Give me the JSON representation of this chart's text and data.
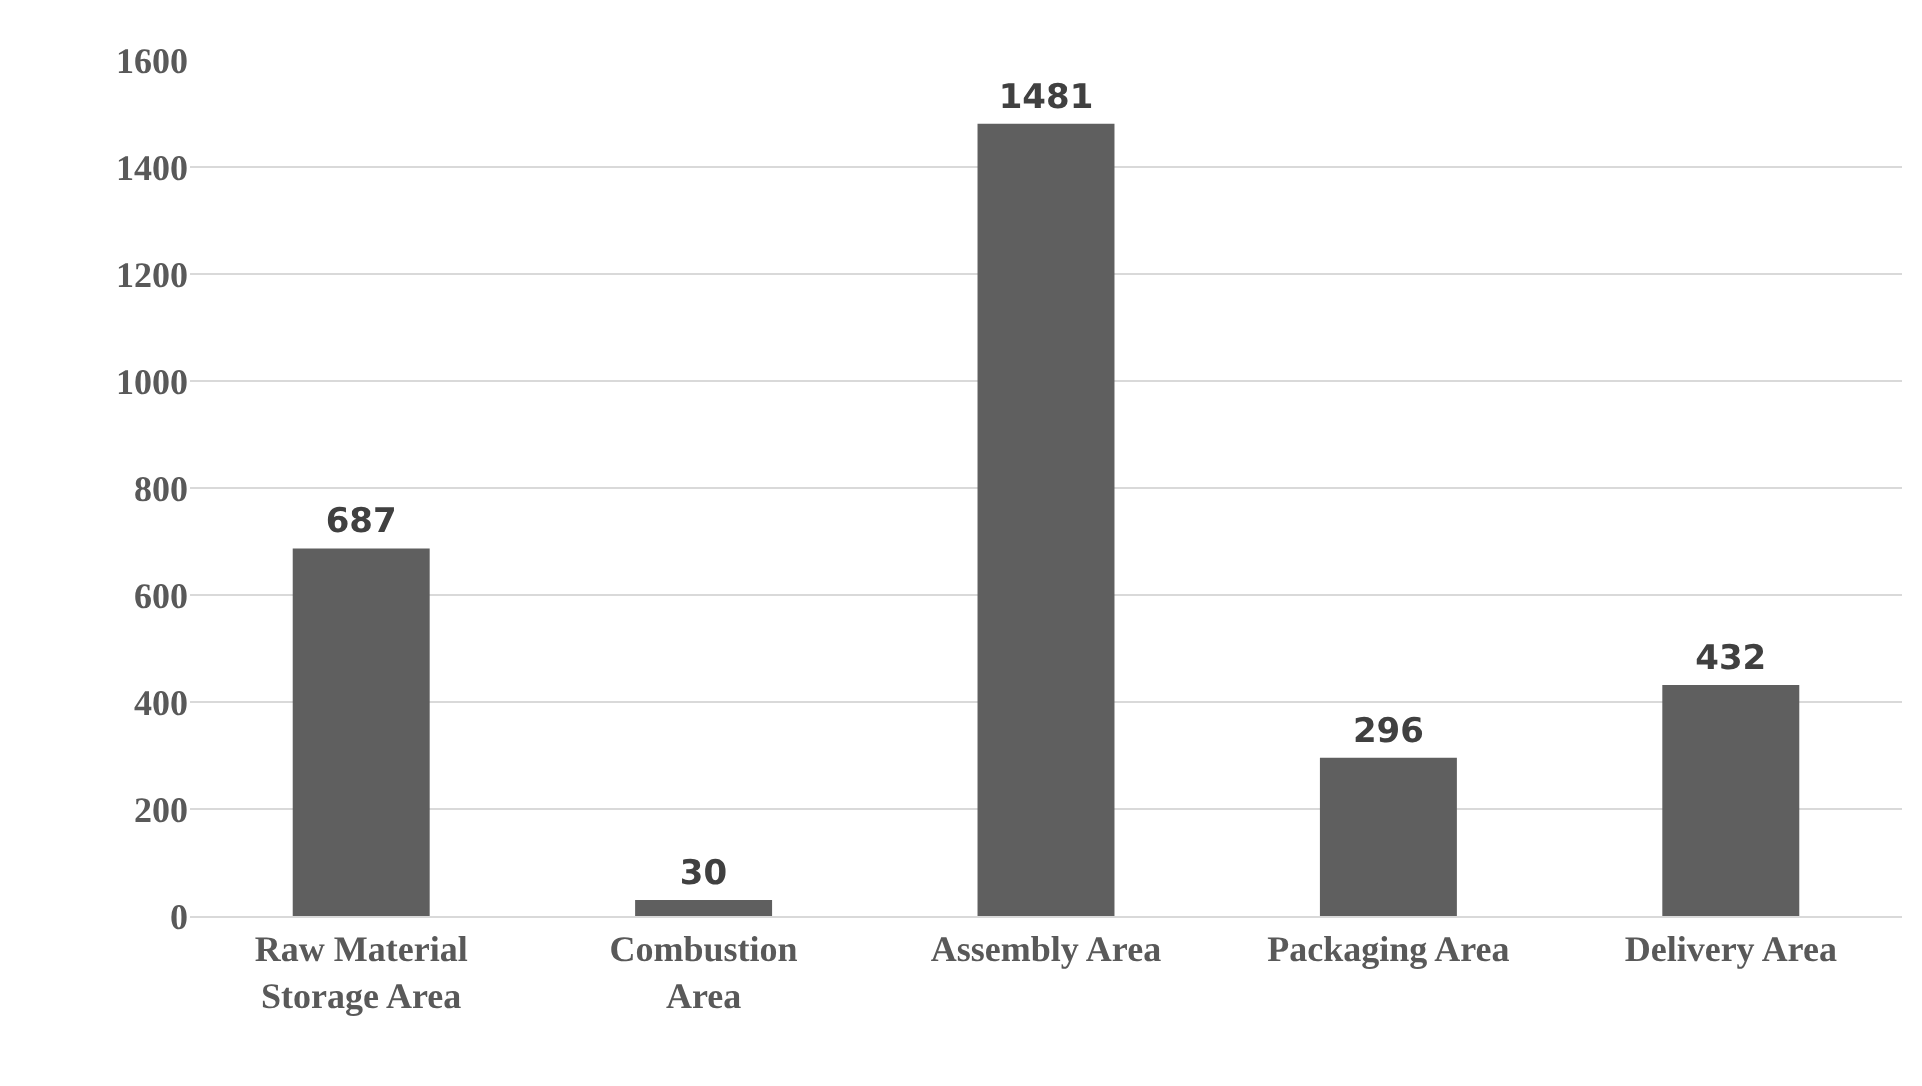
{
  "chart_data": {
    "type": "bar",
    "categories": [
      "Raw Material Storage Area",
      "Combustion Area",
      "Assembly Area",
      "Packaging Area",
      "Delivery Area"
    ],
    "values": [
      687,
      30,
      1481,
      296,
      432
    ],
    "color": "#5f5f5f",
    "ylim": [
      0,
      1600
    ],
    "yticks": [
      0,
      200,
      400,
      600,
      800,
      1000,
      1200,
      1400,
      1600
    ],
    "grid": "y",
    "data_labels": true
  }
}
